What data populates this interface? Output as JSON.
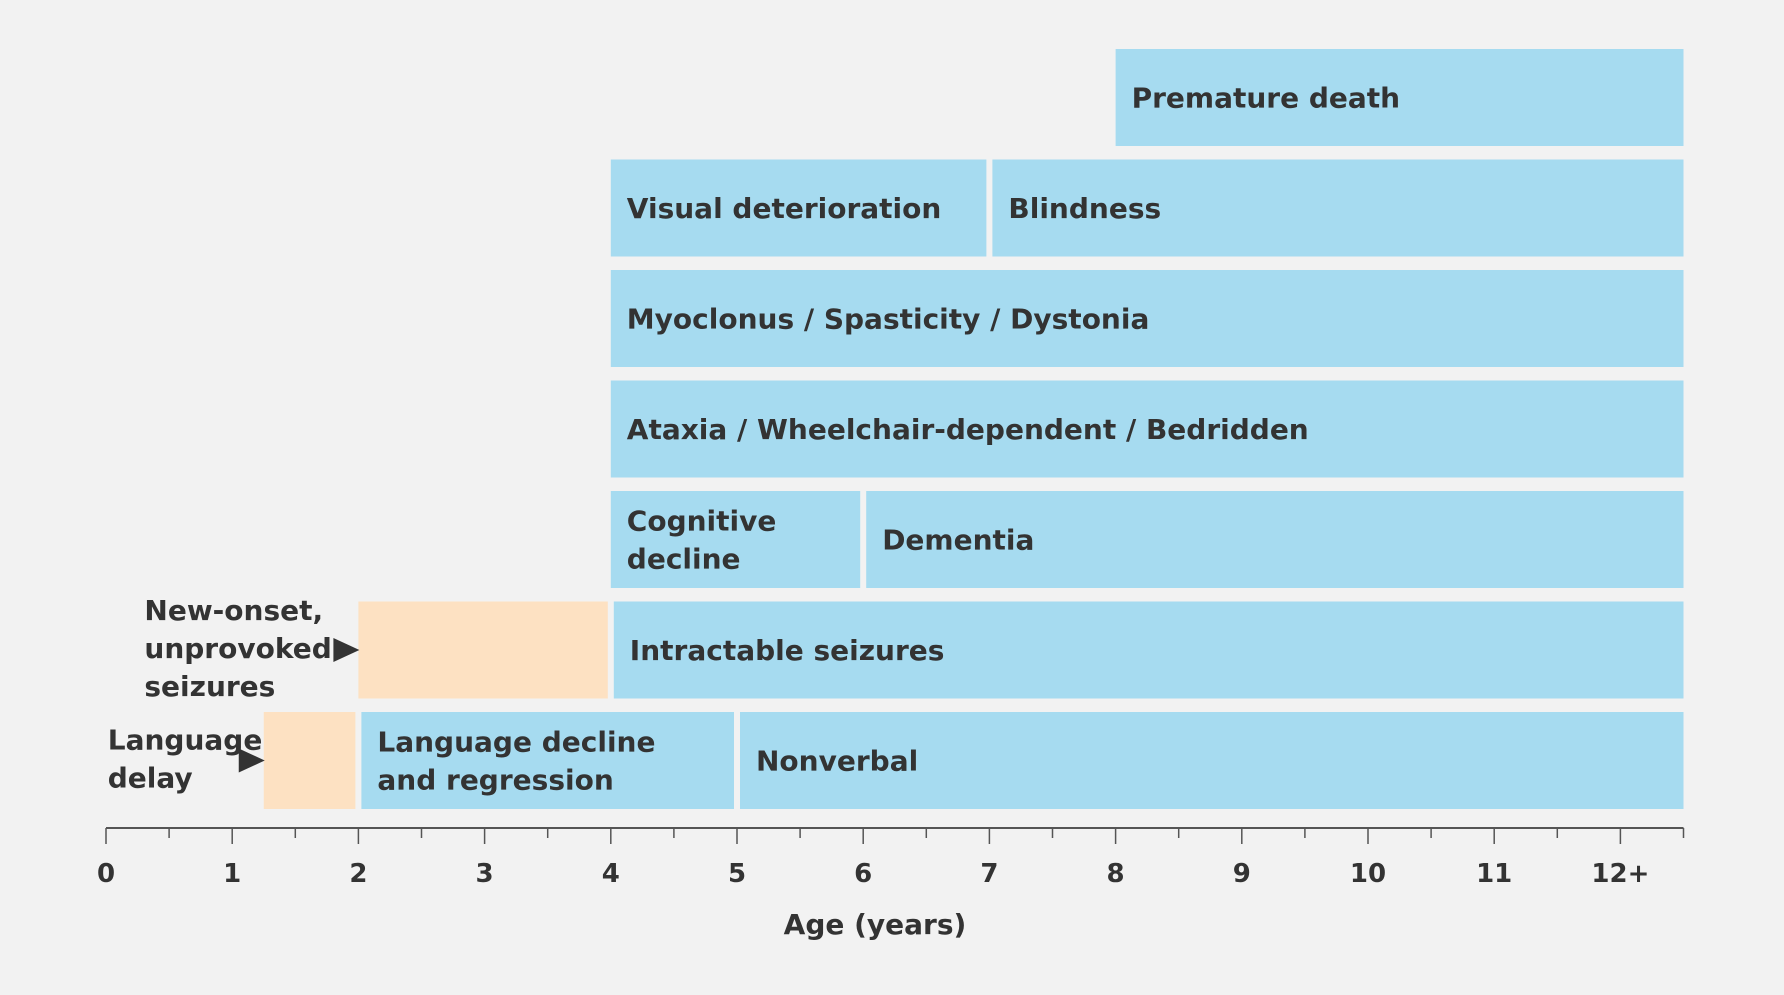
{
  "colors": {
    "background": "#f2f2f2",
    "bar_blue": "#a6dbf0",
    "bar_peach": "#fde1c2",
    "text": "#333333",
    "axis": "#555555"
  },
  "chart_data": {
    "type": "timeline",
    "xlabel": "Age (years)",
    "xlim": [
      0,
      12.5
    ],
    "ticks": [
      {
        "value": 0,
        "label": "0"
      },
      {
        "value": 1,
        "label": "1"
      },
      {
        "value": 2,
        "label": "2"
      },
      {
        "value": 3,
        "label": "3"
      },
      {
        "value": 4,
        "label": "4"
      },
      {
        "value": 5,
        "label": "5"
      },
      {
        "value": 6,
        "label": "6"
      },
      {
        "value": 7,
        "label": "7"
      },
      {
        "value": 8,
        "label": "8"
      },
      {
        "value": 9,
        "label": "9"
      },
      {
        "value": 10,
        "label": "10"
      },
      {
        "value": 11,
        "label": "11"
      },
      {
        "value": 12,
        "label": "12+"
      }
    ],
    "minor_tick_step": 0.5,
    "rows": [
      {
        "segments": [
          {
            "start": 8,
            "end": 12.5,
            "label": [
              "Premature death"
            ],
            "color": "blue"
          }
        ]
      },
      {
        "segments": [
          {
            "start": 4,
            "end": 7,
            "label": [
              "Visual deterioration"
            ],
            "color": "blue"
          },
          {
            "start": 7,
            "end": 12.5,
            "label": [
              "Blindness"
            ],
            "color": "blue"
          }
        ]
      },
      {
        "segments": [
          {
            "start": 4,
            "end": 12.5,
            "label": [
              "Myoclonus / Spasticity / Dystonia"
            ],
            "color": "blue"
          }
        ]
      },
      {
        "segments": [
          {
            "start": 4,
            "end": 12.5,
            "label": [
              "Ataxia / Wheelchair-dependent / Bedridden"
            ],
            "color": "blue"
          }
        ]
      },
      {
        "segments": [
          {
            "start": 4,
            "end": 6,
            "label": [
              "Cognitive",
              "decline"
            ],
            "color": "blue"
          },
          {
            "start": 6,
            "end": 12.5,
            "label": [
              "Dementia"
            ],
            "color": "blue"
          }
        ]
      },
      {
        "side_label": [
          "New-onset,",
          "unprovoked",
          "seizures"
        ],
        "segments": [
          {
            "start": 2,
            "end": 4,
            "label": [],
            "color": "peach"
          },
          {
            "start": 4,
            "end": 12.5,
            "label": [
              "Intractable seizures"
            ],
            "color": "blue"
          }
        ]
      },
      {
        "side_label": [
          "Language",
          "delay"
        ],
        "segments": [
          {
            "start": 1.25,
            "end": 2,
            "label": [],
            "color": "peach"
          },
          {
            "start": 2,
            "end": 5,
            "label": [
              "Language decline",
              "and regression"
            ],
            "color": "blue"
          },
          {
            "start": 5,
            "end": 12.5,
            "label": [
              "Nonverbal"
            ],
            "color": "blue"
          }
        ]
      }
    ]
  }
}
